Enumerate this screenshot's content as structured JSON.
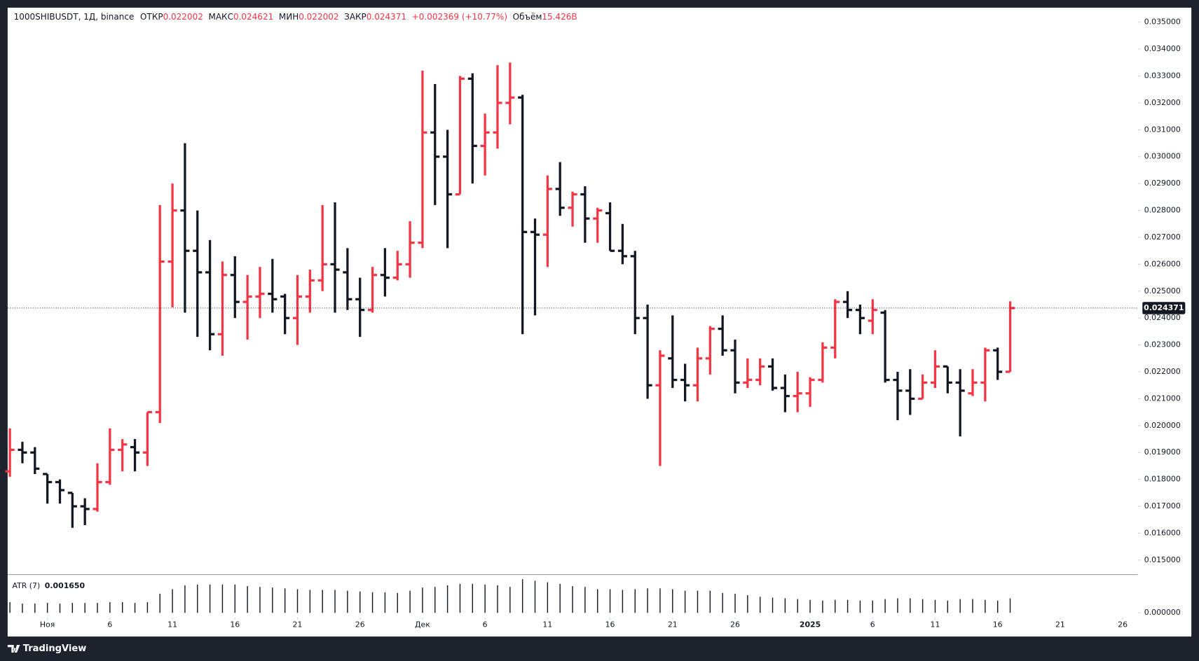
{
  "header": {
    "symbol": "1000SHIBUSDT, 1Д, binance",
    "items": [
      {
        "label": "ОТКР",
        "value": "0.022002"
      },
      {
        "label": "МАКС",
        "value": "0.024621"
      },
      {
        "label": "МИН",
        "value": "0.022002"
      },
      {
        "label": "ЗАКР",
        "value": "0.024371"
      }
    ],
    "change": "+0.002369 (+10.77%)",
    "volume_label": "Объём",
    "volume": "15.426B"
  },
  "brand": "TradingView",
  "chart_data": {
    "type": "ohlc",
    "up_color": "#f23645",
    "down_color": "#131722",
    "open": [
      0.0183,
      0.0191,
      0.019,
      0.0182,
      0.0179,
      0.0175,
      0.017,
      0.0169,
      0.0179,
      0.0191,
      0.0192,
      0.019,
      0.0205,
      0.0261,
      0.028,
      0.0265,
      0.0257,
      0.0234,
      0.0256,
      0.0246,
      0.0248,
      0.0249,
      0.0248,
      0.024,
      0.0248,
      0.0254,
      0.026,
      0.0257,
      0.0247,
      0.0243,
      0.0256,
      0.0255,
      0.026,
      0.0268,
      0.0309,
      0.03,
      0.0286,
      0.0329,
      0.0304,
      0.0309,
      0.032,
      0.0322,
      0.0272,
      0.0271,
      0.0288,
      0.0281,
      0.0286,
      0.0277,
      0.0279,
      0.0265,
      0.0263,
      0.024,
      0.0215,
      0.0225,
      0.0217,
      0.0215,
      0.0225,
      0.0236,
      0.0228,
      0.0216,
      0.0217,
      0.0222,
      0.0214,
      0.0211,
      0.0212,
      0.0217,
      0.0229,
      0.0246,
      0.0243,
      0.0239,
      0.0242,
      0.0217,
      0.0213,
      0.021,
      0.0216,
      0.0222,
      0.0216,
      0.0212,
      0.0216,
      0.0228,
      0.022002
    ],
    "high": [
      0.0199,
      0.0194,
      0.0192,
      0.0182,
      0.018,
      0.0175,
      0.0173,
      0.0186,
      0.0199,
      0.0195,
      0.0195,
      0.0205,
      0.0282,
      0.029,
      0.0305,
      0.028,
      0.0269,
      0.0261,
      0.0263,
      0.0256,
      0.0259,
      0.0262,
      0.0249,
      0.0256,
      0.0258,
      0.0282,
      0.0283,
      0.0266,
      0.0255,
      0.0259,
      0.0266,
      0.0265,
      0.0276,
      0.0332,
      0.0327,
      0.031,
      0.033,
      0.0331,
      0.0316,
      0.0334,
      0.0335,
      0.0323,
      0.0277,
      0.0293,
      0.0298,
      0.0287,
      0.0289,
      0.0281,
      0.0283,
      0.0275,
      0.0265,
      0.0245,
      0.0228,
      0.0241,
      0.0223,
      0.0229,
      0.0237,
      0.0241,
      0.0232,
      0.0225,
      0.0225,
      0.0225,
      0.0219,
      0.022,
      0.0218,
      0.0231,
      0.0247,
      0.025,
      0.0245,
      0.0247,
      0.0243,
      0.022,
      0.0221,
      0.0219,
      0.0228,
      0.0222,
      0.0221,
      0.0221,
      0.0229,
      0.0229,
      0.024621
    ],
    "low": [
      0.0181,
      0.0186,
      0.0182,
      0.0171,
      0.0171,
      0.0162,
      0.0163,
      0.0168,
      0.0178,
      0.0183,
      0.0183,
      0.0185,
      0.0201,
      0.0244,
      0.0242,
      0.0233,
      0.0228,
      0.0226,
      0.024,
      0.0232,
      0.024,
      0.0242,
      0.0234,
      0.023,
      0.0242,
      0.025,
      0.0242,
      0.0243,
      0.0233,
      0.0242,
      0.0248,
      0.0254,
      0.0255,
      0.0266,
      0.0282,
      0.0266,
      0.0286,
      0.029,
      0.0293,
      0.0303,
      0.0312,
      0.0234,
      0.0241,
      0.0259,
      0.0278,
      0.0274,
      0.0268,
      0.0268,
      0.0265,
      0.026,
      0.0234,
      0.021,
      0.0185,
      0.0214,
      0.0209,
      0.0209,
      0.0219,
      0.0226,
      0.0212,
      0.0214,
      0.0215,
      0.0213,
      0.0205,
      0.0205,
      0.0207,
      0.0216,
      0.0225,
      0.024,
      0.0234,
      0.0234,
      0.0216,
      0.0202,
      0.0204,
      0.021,
      0.0214,
      0.0212,
      0.0196,
      0.0211,
      0.0209,
      0.0217,
      0.022002
    ],
    "close": [
      0.0191,
      0.019,
      0.0184,
      0.0179,
      0.0176,
      0.017,
      0.0169,
      0.0179,
      0.0191,
      0.0193,
      0.019,
      0.0205,
      0.0261,
      0.028,
      0.0265,
      0.0257,
      0.0234,
      0.0256,
      0.0246,
      0.0248,
      0.0249,
      0.0247,
      0.024,
      0.0248,
      0.0254,
      0.026,
      0.0258,
      0.0247,
      0.0243,
      0.0256,
      0.0255,
      0.026,
      0.0268,
      0.0309,
      0.03,
      0.0286,
      0.0329,
      0.0304,
      0.0309,
      0.032,
      0.0322,
      0.0272,
      0.0271,
      0.0288,
      0.0281,
      0.0286,
      0.0277,
      0.028,
      0.0265,
      0.0263,
      0.024,
      0.0215,
      0.0226,
      0.0217,
      0.0215,
      0.0225,
      0.0236,
      0.0228,
      0.0216,
      0.0217,
      0.0222,
      0.0214,
      0.0211,
      0.0212,
      0.0217,
      0.0229,
      0.0246,
      0.0243,
      0.024,
      0.0243,
      0.0217,
      0.0213,
      0.021,
      0.0216,
      0.0222,
      0.0216,
      0.0213,
      0.0216,
      0.0228,
      0.022,
      0.024371
    ],
    "xlim": [
      -0.18,
      90.21
    ],
    "xticks": [
      {
        "value": 3,
        "label": "Ноя"
      },
      {
        "value": 8,
        "label": "6"
      },
      {
        "value": 13,
        "label": "11"
      },
      {
        "value": 18,
        "label": "16"
      },
      {
        "value": 23,
        "label": "21"
      },
      {
        "value": 28,
        "label": "26"
      },
      {
        "value": 33,
        "label": "Дек"
      },
      {
        "value": 38,
        "label": "6"
      },
      {
        "value": 43,
        "label": "11"
      },
      {
        "value": 48,
        "label": "16"
      },
      {
        "value": 53,
        "label": "21"
      },
      {
        "value": 58,
        "label": "26"
      },
      {
        "value": 64,
        "label": "2025"
      },
      {
        "value": 69,
        "label": "6"
      },
      {
        "value": 74,
        "label": "11"
      },
      {
        "value": 79,
        "label": "16"
      },
      {
        "value": 84,
        "label": "21"
      },
      {
        "value": 89,
        "label": "26"
      }
    ],
    "ylim": [
      0.01446,
      0.03554
    ],
    "yticks": [
      {
        "value": 0.015,
        "label": "0.015000"
      },
      {
        "value": 0.016,
        "label": "0.016000"
      },
      {
        "value": 0.017,
        "label": "0.017000"
      },
      {
        "value": 0.018,
        "label": "0.018000"
      },
      {
        "value": 0.019,
        "label": "0.019000"
      },
      {
        "value": 0.02,
        "label": "0.020000"
      },
      {
        "value": 0.021,
        "label": "0.021000"
      },
      {
        "value": 0.022,
        "label": "0.022000"
      },
      {
        "value": 0.023,
        "label": "0.023000"
      },
      {
        "value": 0.024,
        "label": "0.024000"
      },
      {
        "value": 0.025,
        "label": "0.025000"
      },
      {
        "value": 0.026,
        "label": "0.026000"
      },
      {
        "value": 0.027,
        "label": "0.027000"
      },
      {
        "value": 0.028,
        "label": "0.028000"
      },
      {
        "value": 0.029,
        "label": "0.029000"
      },
      {
        "value": 0.03,
        "label": "0.030000"
      },
      {
        "value": 0.031,
        "label": "0.031000"
      },
      {
        "value": 0.032,
        "label": "0.032000"
      },
      {
        "value": 0.033,
        "label": "0.033000"
      },
      {
        "value": 0.034,
        "label": "0.034000"
      },
      {
        "value": 0.035,
        "label": "0.035000"
      }
    ],
    "atr": {
      "name": "ATR (7)",
      "color": "#131722",
      "value_label": "0.001650",
      "values": [
        0.00122,
        0.00105,
        0.00105,
        0.00113,
        0.00105,
        0.00113,
        0.00113,
        0.00113,
        0.00122,
        0.00122,
        0.00113,
        0.00122,
        0.00218,
        0.0027,
        0.00314,
        0.00323,
        0.00323,
        0.00323,
        0.00323,
        0.00305,
        0.00296,
        0.00288,
        0.00279,
        0.0027,
        0.00262,
        0.00262,
        0.00262,
        0.00253,
        0.00244,
        0.00235,
        0.00235,
        0.00227,
        0.00253,
        0.00288,
        0.00296,
        0.00314,
        0.00331,
        0.00331,
        0.00323,
        0.00314,
        0.00296,
        0.00384,
        0.00366,
        0.00349,
        0.00331,
        0.00305,
        0.00296,
        0.0027,
        0.0027,
        0.00262,
        0.0027,
        0.00279,
        0.00279,
        0.0027,
        0.00253,
        0.00253,
        0.00253,
        0.00227,
        0.00218,
        0.00201,
        0.00183,
        0.00174,
        0.00166,
        0.00157,
        0.00148,
        0.0014,
        0.00148,
        0.00148,
        0.0014,
        0.0014,
        0.00157,
        0.00166,
        0.00166,
        0.00157,
        0.00148,
        0.0014,
        0.00157,
        0.00157,
        0.00148,
        0.0014,
        0.00165
      ],
      "ylim": [
        0,
        0.0041
      ],
      "yticks": [
        {
          "value": 0,
          "label": "0.000000"
        }
      ]
    }
  }
}
